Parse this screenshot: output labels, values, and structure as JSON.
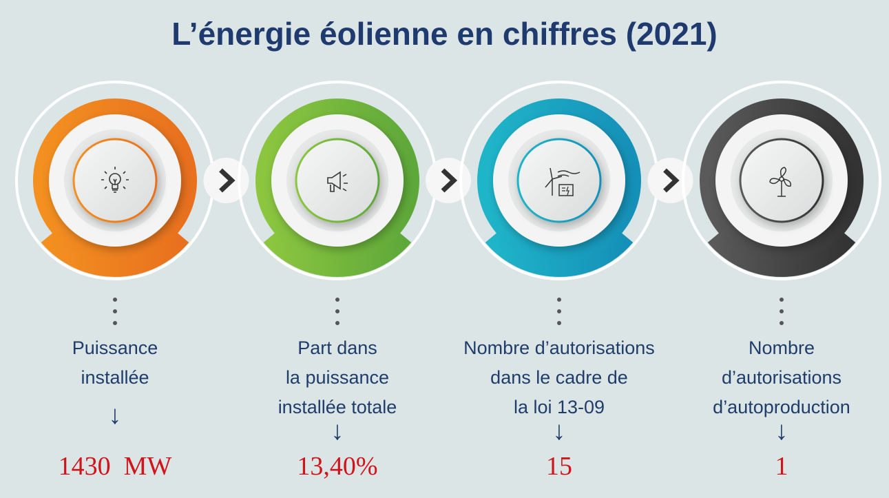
{
  "title": "L’énergie éolienne en chiffres (2021)",
  "items": [
    {
      "label": [
        "Puissance",
        "installée"
      ],
      "value": "1430  MW",
      "icon": "lightbulb-icon",
      "color": "#f39020",
      "color2": "#e8701e"
    },
    {
      "label": [
        "Part dans",
        "la puissance",
        "installée totale"
      ],
      "value": "13,40%",
      "icon": "megaphone-icon",
      "color": "#8cc63f",
      "color2": "#5ea83a"
    },
    {
      "label": [
        "Nombre d’autorisations",
        "dans le cadre de",
        "la loi 13-09"
      ],
      "value": "15",
      "icon": "wind-turbine-icon",
      "color": "#1fb5c9",
      "color2": "#1590b8"
    },
    {
      "label": [
        "Nombre",
        "d’autorisations",
        "d’autoproduction"
      ],
      "value": "1",
      "icon": "fan-icon",
      "color": "#5a5a5a",
      "color2": "#333333"
    }
  ],
  "arrow_glyph": "↓",
  "chevron_icon": "chevron-right-icon"
}
